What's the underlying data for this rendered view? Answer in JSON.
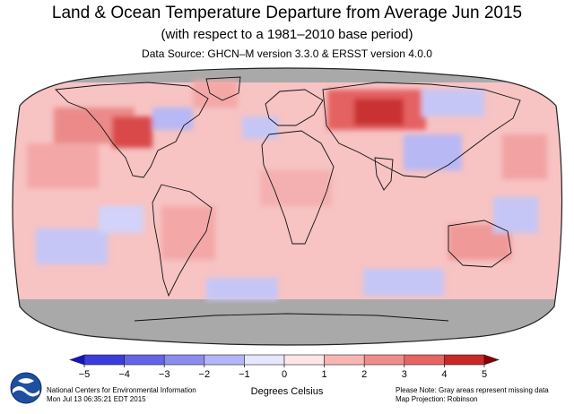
{
  "header": {
    "title": "Land & Ocean Temperature Departure from Average Jun 2015",
    "subtitle": "(with respect to a 1981–2010 base period)",
    "data_source": "Data Source: GHCN–M version 3.3.0 & ERSST version 4.0.0"
  },
  "map": {
    "projection": "Robinson",
    "missing_color": "#a9a9a9",
    "ocean_default_color": "#f7c3c3"
  },
  "colorbar": {
    "ticks": [
      "−5",
      "−4",
      "−3",
      "−2",
      "−1",
      "0",
      "1",
      "2",
      "3",
      "4",
      "5"
    ],
    "units_label": "Degrees Celsius",
    "colors": [
      "#1414c8",
      "#3c3cdc",
      "#6464e6",
      "#8c8cf0",
      "#b4b4fa",
      "#e6e6ff",
      "#ffe6e6",
      "#fab4b4",
      "#f08c8c",
      "#e66464",
      "#c82828",
      "#8c0000"
    ]
  },
  "footer": {
    "org_line1": "National Centers for Environmental Information",
    "org_line2": "Mon Jul 13 06:35:21 EDT 2015",
    "note_line1": "Please Note: Gray areas represent missing data",
    "note_line2": "Map Projection: Robinson",
    "logo_icon": "noaa-logo-icon"
  }
}
